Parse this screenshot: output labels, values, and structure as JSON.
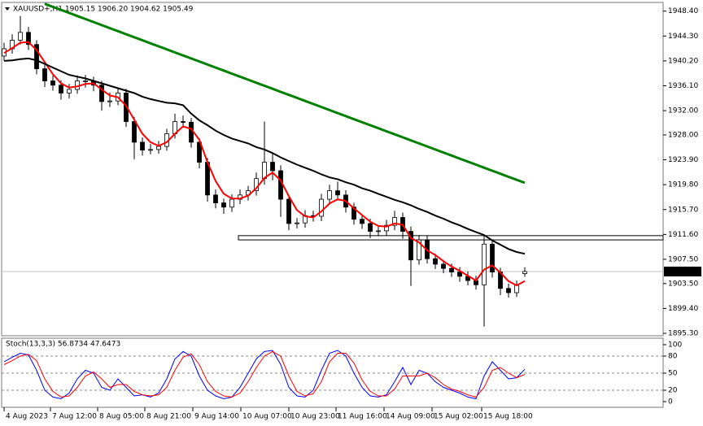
{
  "chart_data": [
    {
      "type": "candlestick",
      "header": "XAUUSD+,H1  1905.15 1906.20 1904.62 1905.49",
      "xlim": [
        0,
        81
      ],
      "xticks": [
        {
          "value": 0,
          "label": "4 Aug 2023"
        },
        {
          "value": 5.7,
          "label": "7 Aug 12:00"
        },
        {
          "value": 11.5,
          "label": "8 Aug 05:00"
        },
        {
          "value": 17.3,
          "label": "8 Aug 21:00"
        },
        {
          "value": 23.2,
          "label": "9 Aug 14:00"
        },
        {
          "value": 29.1,
          "label": "10 Aug 07:00"
        },
        {
          "value": 35,
          "label": "10 Aug 23:00"
        },
        {
          "value": 40.8,
          "label": "11 Aug 16:00"
        },
        {
          "value": 46.7,
          "label": "14 Aug 09:00"
        },
        {
          "value": 52.6,
          "label": "15 Aug 02:00"
        },
        {
          "value": 58.7,
          "label": "15 Aug 18:00"
        }
      ],
      "ylim": [
        1894.9,
        1949.7
      ],
      "yticks": [
        {
          "value": 1948.4,
          "label": "1948.40"
        },
        {
          "value": 1944.3,
          "label": "1944.30"
        },
        {
          "value": 1940.2,
          "label": "1940.20"
        },
        {
          "value": 1936.1,
          "label": "1936.10"
        },
        {
          "value": 1932,
          "label": "1932.00"
        },
        {
          "value": 1928,
          "label": "1928.00"
        },
        {
          "value": 1923.9,
          "label": "1923.90"
        },
        {
          "value": 1919.8,
          "label": "1919.80"
        },
        {
          "value": 1915.7,
          "label": "1915.70"
        },
        {
          "value": 1911.6,
          "label": "1911.60"
        },
        {
          "value": 1907.5,
          "label": "1907.50"
        },
        {
          "value": 1903.5,
          "label": "1903.50"
        },
        {
          "value": 1899.4,
          "label": "1899.40"
        },
        {
          "value": 1895.3,
          "label": "1895.30"
        }
      ],
      "open": [
        1941.0,
        1942.2,
        1943.6,
        1944.9,
        1942.9,
        1938.9,
        1936.9,
        1936.2,
        1934.9,
        1935.5,
        1936.9,
        1936.9,
        1936.2,
        1933.5,
        1933.6,
        1934.9,
        1930.2,
        1926.8,
        1925.5,
        1925.6,
        1926.1,
        1928.2,
        1930.2,
        1930.1,
        1926.8,
        1923.5,
        1918.1,
        1916.8,
        1916.1,
        1917.4,
        1918.1,
        1918.8,
        1920.8,
        1923.5,
        1922.1,
        1917.4,
        1913.4,
        1913.5,
        1914.7,
        1914.6,
        1917.4,
        1918.8,
        1918.1,
        1916.1,
        1914.1,
        1913.4,
        1912.1,
        1912.2,
        1913.1,
        1914.4,
        1912.1,
        1907.4,
        1910.7,
        1907.6,
        1906.7,
        1906.0,
        1905.4,
        1904.7,
        1904.0,
        1903.3,
        1910.0,
        1905.4,
        1902.7,
        1902.0,
        1905.15
      ],
      "high": [
        1943.2,
        1944.6,
        1947.6,
        1945.8,
        1943.6,
        1939.7,
        1937.8,
        1937.0,
        1936.4,
        1937.8,
        1937.9,
        1937.6,
        1936.9,
        1935.0,
        1935.8,
        1935.6,
        1931.0,
        1927.6,
        1926.5,
        1927.0,
        1929.0,
        1931.5,
        1931.2,
        1930.8,
        1927.5,
        1924.2,
        1919.0,
        1917.5,
        1918.2,
        1919.0,
        1919.6,
        1921.8,
        1930.2,
        1925.0,
        1923.0,
        1918.0,
        1914.3,
        1915.6,
        1915.5,
        1918.3,
        1919.8,
        1920.3,
        1918.9,
        1916.8,
        1914.9,
        1914.2,
        1913.0,
        1914.0,
        1915.5,
        1915.2,
        1912.9,
        1911.5,
        1911.4,
        1908.4,
        1907.4,
        1906.8,
        1906.2,
        1905.5,
        1904.8,
        1911.4,
        1910.8,
        1906.1,
        1903.5,
        1904.0,
        1906.2
      ],
      "low": [
        1940.2,
        1941.4,
        1942.9,
        1942.0,
        1938.0,
        1935.9,
        1935.3,
        1933.8,
        1934.0,
        1934.8,
        1935.8,
        1935.2,
        1932.0,
        1932.6,
        1932.9,
        1929.3,
        1924.0,
        1924.6,
        1924.8,
        1924.9,
        1925.4,
        1927.4,
        1929.2,
        1925.9,
        1922.5,
        1917.0,
        1915.9,
        1915.0,
        1915.3,
        1916.6,
        1917.2,
        1918.0,
        1919.8,
        1920.5,
        1914.5,
        1912.3,
        1912.6,
        1912.7,
        1913.7,
        1913.8,
        1916.5,
        1917.2,
        1915.2,
        1913.2,
        1912.5,
        1911.0,
        1911.3,
        1911.4,
        1912.3,
        1910.9,
        1903.1,
        1906.6,
        1906.8,
        1905.9,
        1905.2,
        1904.6,
        1903.8,
        1903.2,
        1902.5,
        1896.4,
        1904.5,
        1901.6,
        1901.2,
        1901.3,
        1904.62
      ],
      "close": [
        1942.2,
        1943.6,
        1944.9,
        1942.9,
        1938.9,
        1936.9,
        1936.2,
        1934.9,
        1935.5,
        1936.9,
        1936.9,
        1936.2,
        1933.5,
        1933.6,
        1934.9,
        1930.2,
        1926.8,
        1925.5,
        1925.6,
        1926.1,
        1928.2,
        1930.2,
        1930.1,
        1926.8,
        1923.5,
        1918.1,
        1916.8,
        1916.1,
        1917.4,
        1918.1,
        1918.8,
        1920.8,
        1923.5,
        1922.1,
        1917.4,
        1913.4,
        1913.5,
        1914.7,
        1914.6,
        1917.4,
        1918.8,
        1918.1,
        1916.1,
        1914.1,
        1913.4,
        1912.1,
        1912.2,
        1913.1,
        1914.4,
        1912.1,
        1907.4,
        1910.7,
        1907.6,
        1906.7,
        1906.0,
        1905.4,
        1904.7,
        1904.0,
        1903.3,
        1910.0,
        1905.4,
        1902.7,
        1902.0,
        1903.3,
        1905.49
      ],
      "ma_lines": [
        {
          "color": "#ff0000",
          "values": [
            1941.5,
            1942.3,
            1943.2,
            1943.3,
            1942.0,
            1940.0,
            1938.0,
            1936.5,
            1935.8,
            1936.0,
            1936.4,
            1936.5,
            1935.5,
            1934.5,
            1934.2,
            1932.8,
            1930.5,
            1928.2,
            1926.8,
            1926.2,
            1926.8,
            1928.2,
            1929.4,
            1929.0,
            1927.2,
            1923.5,
            1920.4,
            1918.3,
            1917.5,
            1917.5,
            1918.0,
            1919.2,
            1920.9,
            1921.8,
            1920.5,
            1917.9,
            1915.6,
            1914.6,
            1914.4,
            1915.4,
            1916.7,
            1917.4,
            1917.1,
            1915.9,
            1914.8,
            1913.7,
            1913.0,
            1912.9,
            1913.4,
            1913.2,
            1911.0,
            1910.3,
            1909.0,
            1908.2,
            1907.2,
            1906.3,
            1905.6,
            1904.8,
            1904.0,
            1905.8,
            1906.5,
            1905.3,
            1903.9,
            1903.2,
            1903.9
          ]
        },
        {
          "color": "#000000",
          "values": [
            1940.2,
            1940.3,
            1940.5,
            1940.6,
            1940.3,
            1939.7,
            1939.1,
            1938.5,
            1937.9,
            1937.6,
            1937.3,
            1936.9,
            1936.5,
            1936.1,
            1935.7,
            1935.3,
            1934.9,
            1934.3,
            1933.9,
            1933.6,
            1933.3,
            1933.2,
            1932.9,
            1931.5,
            1930.4,
            1929.6,
            1928.7,
            1928.0,
            1927.4,
            1927.0,
            1926.6,
            1926.0,
            1925.6,
            1925.0,
            1924.3,
            1923.7,
            1923.1,
            1922.6,
            1922.1,
            1921.5,
            1921.0,
            1920.7,
            1920.2,
            1919.8,
            1919.2,
            1918.8,
            1918.3,
            1917.8,
            1917.3,
            1916.9,
            1916.4,
            1915.8,
            1915.3,
            1914.7,
            1914.2,
            1913.6,
            1913.1,
            1912.5,
            1912.0,
            1911.5,
            1910.6,
            1909.9,
            1909.2,
            1908.7,
            1908.4
          ]
        },
        {
          "color": "#008000",
          "values": [
            null,
            null,
            null,
            null,
            null,
            1949.6,
            1949.1,
            1948.6,
            1948.1,
            1947.6,
            1947.1,
            1946.6,
            1946.1,
            1945.6,
            1945.1,
            1944.6,
            1944.1,
            1943.6,
            1943.1,
            1942.6,
            1942.1,
            1941.6,
            1941.1,
            1940.6,
            1940.1,
            1939.6,
            1939.1,
            1938.6,
            1938.1,
            1937.6,
            1937.1,
            1936.6,
            1936.1,
            1935.6,
            1935.1,
            1934.6,
            1934.1,
            1933.6,
            1933.1,
            1932.6,
            1932.1,
            1931.6,
            1931.1,
            1930.6,
            1930.1,
            1929.6,
            1929.1,
            1928.6,
            1928.1,
            1927.6,
            1927.1,
            1926.6,
            1926.1,
            1925.6,
            1925.1,
            1924.6,
            1924.1,
            1923.6,
            1923.1,
            1922.6,
            1922.1,
            1921.6,
            1921.1,
            1920.6,
            1920.1
          ]
        }
      ],
      "rectangle": {
        "x": 28.8,
        "levels": [
          1910.7,
          1911.4
        ]
      }
    },
    {
      "type": "line",
      "title": "Stoch(13,3,3) 56.8734 47.6473",
      "ylim": [
        -10,
        111.4
      ],
      "yticks": [
        100,
        80,
        50,
        20,
        0
      ],
      "levels": [
        80,
        50,
        20
      ],
      "series": [
        {
          "color": "#0000ff",
          "values": [
            70,
            78,
            85,
            82,
            55,
            20,
            8,
            5,
            15,
            40,
            55,
            50,
            25,
            20,
            40,
            25,
            10,
            12,
            8,
            15,
            40,
            75,
            88,
            80,
            45,
            20,
            10,
            5,
            8,
            25,
            50,
            75,
            88,
            90,
            65,
            25,
            10,
            8,
            20,
            55,
            85,
            90,
            80,
            50,
            25,
            10,
            8,
            12,
            35,
            60,
            30,
            55,
            50,
            35,
            25,
            20,
            15,
            8,
            5,
            45,
            70,
            55,
            40,
            42,
            56.8734
          ]
        },
        {
          "color": "#ff0000",
          "values": [
            65,
            72,
            80,
            83,
            72,
            40,
            18,
            8,
            10,
            25,
            45,
            52,
            40,
            25,
            30,
            30,
            18,
            12,
            10,
            12,
            25,
            55,
            78,
            84,
            65,
            35,
            18,
            10,
            8,
            15,
            35,
            60,
            80,
            88,
            80,
            45,
            18,
            10,
            14,
            35,
            70,
            85,
            85,
            68,
            38,
            18,
            10,
            10,
            22,
            45,
            45,
            45,
            50,
            42,
            30,
            22,
            18,
            12,
            8,
            25,
            55,
            60,
            50,
            42,
            47.6473
          ]
        }
      ]
    }
  ]
}
